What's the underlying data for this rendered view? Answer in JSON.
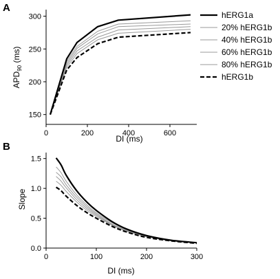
{
  "chart_data": [
    {
      "panel": "A",
      "type": "line",
      "xlabel": "DI (ms)",
      "ylabel": {
        "main": "APD",
        "sub": "90",
        "tail": " (ms)"
      },
      "xlim": [
        0,
        730
      ],
      "ylim": [
        135,
        310
      ],
      "x_ticks": [
        0,
        200,
        400,
        600
      ],
      "y_ticks": [
        150,
        200,
        250,
        300
      ],
      "grid": false,
      "legend_position": "right",
      "x": [
        20,
        100,
        150,
        250,
        350,
        700
      ],
      "series": [
        {
          "name": "hERG1a",
          "color": "#000000",
          "style": "solid-thick",
          "values": [
            150,
            235,
            260,
            284,
            294,
            302
          ]
        },
        {
          "name": "20% hERG1b",
          "color": "#999999",
          "style": "solid-thin",
          "values": [
            150,
            231,
            254,
            277,
            288,
            293
          ]
        },
        {
          "name": "40% hERG1b",
          "color": "#999999",
          "style": "solid-thin",
          "values": [
            150,
            228,
            251,
            273,
            284,
            288
          ]
        },
        {
          "name": "60% hERG1b",
          "color": "#999999",
          "style": "solid-thin",
          "values": [
            150,
            225,
            247,
            268,
            279,
            284
          ]
        },
        {
          "name": "80% hERG1b",
          "color": "#999999",
          "style": "solid-thin",
          "values": [
            150,
            222,
            243,
            264,
            274,
            280
          ]
        },
        {
          "name": "hERG1b",
          "color": "#000000",
          "style": "dashed-thick",
          "values": [
            150,
            218,
            237,
            258,
            268,
            275
          ]
        }
      ]
    },
    {
      "panel": "B",
      "type": "line",
      "xlabel": "DI (ms)",
      "ylabel": "Slope",
      "xlim": [
        0,
        300
      ],
      "ylim": [
        0,
        1.6
      ],
      "x_ticks": [
        0,
        100,
        200,
        300
      ],
      "y_ticks": [
        0.0,
        0.5,
        1.0,
        1.5
      ],
      "y_tick_labels": [
        "0.0",
        "0.5",
        "1.0",
        "1.5"
      ],
      "grid": false,
      "x": [
        20,
        30,
        40,
        60,
        80,
        100,
        130,
        160,
        200,
        250,
        300
      ],
      "series": [
        {
          "name": "hERG1a",
          "color": "#000000",
          "style": "solid-thick",
          "values": [
            1.51,
            1.39,
            1.22,
            0.97,
            0.78,
            0.63,
            0.45,
            0.32,
            0.21,
            0.13,
            0.09
          ]
        },
        {
          "name": "20% hERG1b",
          "color": "#999999",
          "style": "solid-thin",
          "values": [
            1.36,
            1.26,
            1.12,
            0.9,
            0.73,
            0.59,
            0.43,
            0.31,
            0.2,
            0.13,
            0.09
          ]
        },
        {
          "name": "40% hERG1b",
          "color": "#999999",
          "style": "solid-thin",
          "values": [
            1.27,
            1.19,
            1.06,
            0.86,
            0.7,
            0.57,
            0.41,
            0.3,
            0.2,
            0.13,
            0.09
          ]
        },
        {
          "name": "60% hERG1b",
          "color": "#999999",
          "style": "solid-thin",
          "values": [
            1.2,
            1.12,
            1.01,
            0.82,
            0.67,
            0.55,
            0.4,
            0.29,
            0.19,
            0.12,
            0.09
          ]
        },
        {
          "name": "80% hERG1b",
          "color": "#999999",
          "style": "solid-thin",
          "values": [
            1.12,
            1.05,
            0.95,
            0.78,
            0.64,
            0.53,
            0.39,
            0.28,
            0.19,
            0.12,
            0.09
          ]
        },
        {
          "name": "hERG1b",
          "color": "#000000",
          "style": "dashed-thick",
          "values": [
            1.02,
            0.96,
            0.87,
            0.72,
            0.6,
            0.5,
            0.37,
            0.27,
            0.18,
            0.12,
            0.08
          ]
        }
      ]
    }
  ]
}
